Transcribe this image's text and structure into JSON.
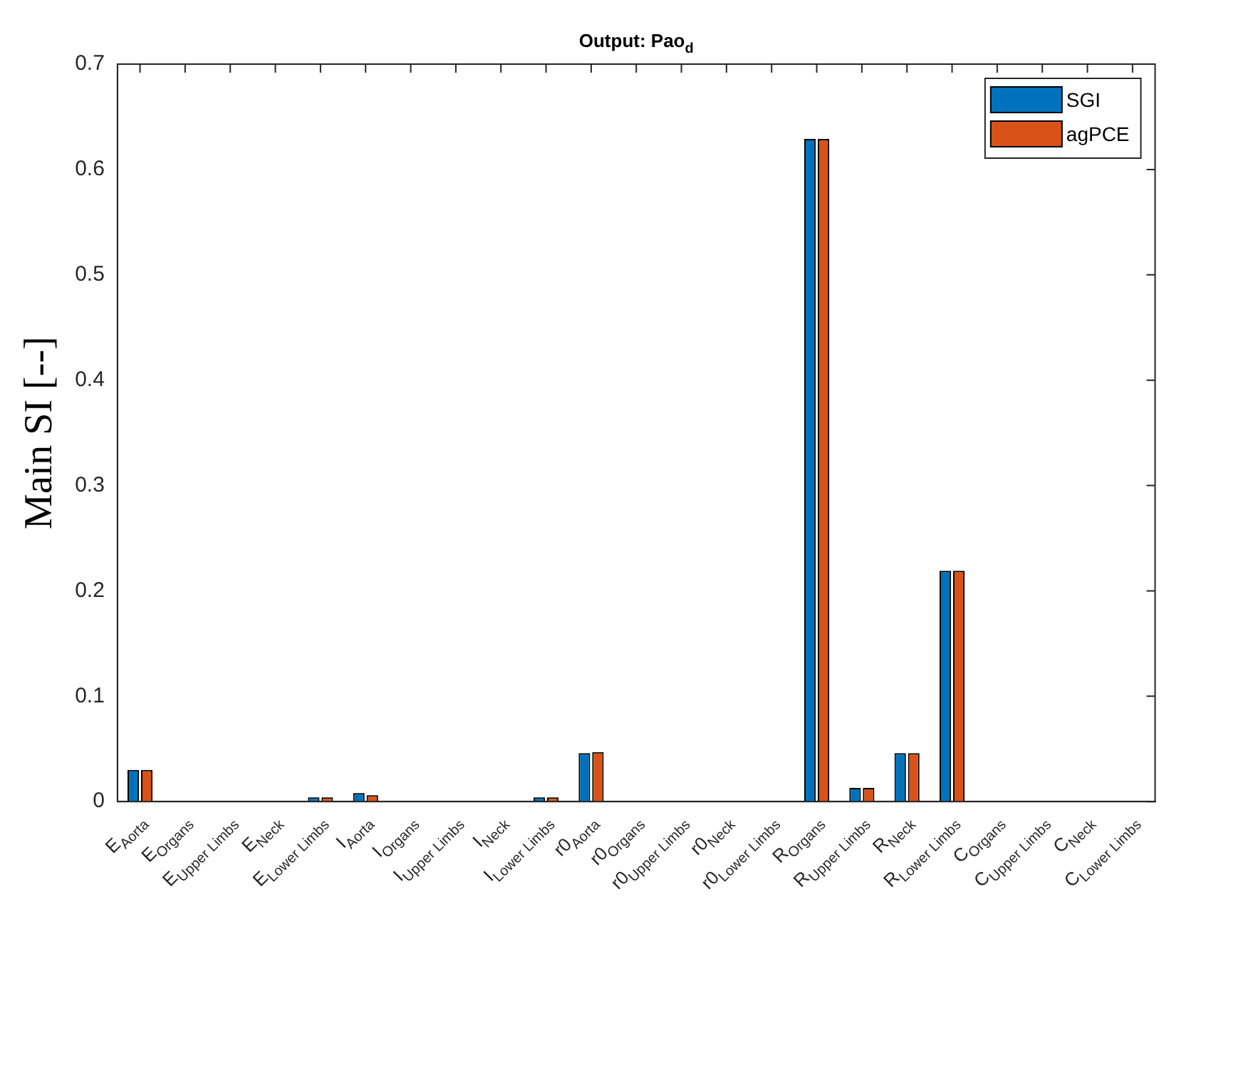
{
  "chart_data": {
    "type": "bar",
    "title": "Output: Pao$_{d}$",
    "ylabel": "Main SI [--]",
    "categories": [
      "E$_{Aorta}$",
      "E$_{Organs}$",
      "E$_{Upper Limbs}$",
      "E$_{Neck}$",
      "E$_{Lower Limbs}$",
      "I$_{Aorta}$",
      "I$_{Organs}$",
      "I$_{Upper Limbs}$",
      "I$_{Neck}$",
      "I$_{Lower Limbs}$",
      "r0$_{Aorta}$",
      "r0$_{Organs}$",
      "r0$_{Upper Limbs}$",
      "r0$_{Neck}$",
      "r0$_{Lower Limbs}$",
      "R$_{Organs}$",
      "R$_{Upper Limbs}$",
      "R$_{Neck}$",
      "R$_{Lower Limbs}$",
      "C$_{Organs}$",
      "C$_{Upper Limbs}$",
      "C$_{Neck}$",
      "C$_{Lower Limbs}$"
    ],
    "series": [
      {
        "name": "SGI",
        "color": "#0072bd",
        "values": [
          0.03,
          0,
          0,
          0,
          0.004,
          0.008,
          0,
          0,
          0,
          0.004,
          0.046,
          0,
          0,
          0,
          0,
          0.629,
          0.013,
          0.046,
          0.219,
          0,
          0,
          0,
          0
        ]
      },
      {
        "name": "agPCE",
        "color": "#d95319",
        "values": [
          0.03,
          0,
          0,
          0,
          0.004,
          0.006,
          0,
          0,
          0,
          0.004,
          0.047,
          0,
          0,
          0,
          0,
          0.629,
          0.013,
          0.046,
          0.219,
          0,
          0,
          0,
          0
        ]
      }
    ],
    "ylim": [
      0,
      0.7
    ],
    "yticks": [
      0,
      0.1,
      0.2,
      0.3,
      0.4,
      0.5,
      0.6,
      0.7
    ],
    "grid": false,
    "legend": "top right"
  }
}
